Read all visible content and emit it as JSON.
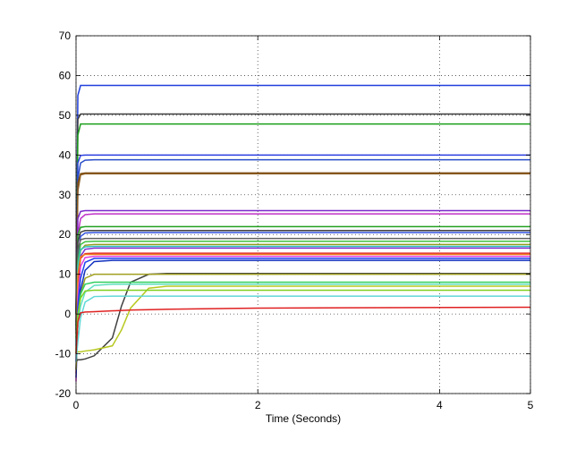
{
  "chart_data": {
    "type": "line",
    "xlabel": "Time (Seconds)",
    "x": [
      0,
      0.02,
      0.05,
      0.1,
      0.2,
      0.4,
      0.5,
      0.6,
      0.8,
      1,
      2,
      5
    ],
    "xlim": [
      0,
      5
    ],
    "xticks": [
      0,
      2,
      4,
      5
    ],
    "ylim": [
      -20,
      70
    ],
    "yticks": [
      -20,
      -10,
      0,
      10,
      20,
      30,
      40,
      50,
      60,
      70
    ],
    "grid": true,
    "series": [
      {
        "color": "#1f3fdc",
        "values": [
          0,
          55,
          57.5,
          57.5,
          57.5,
          57.5,
          57.5,
          57.5,
          57.5,
          57.5,
          57.5,
          57.5
        ]
      },
      {
        "color": "#3a3a3a",
        "values": [
          0,
          49,
          50.3,
          50.3,
          50.3,
          50.3,
          50.3,
          50.3,
          50.3,
          50.3,
          50.3,
          50.3
        ]
      },
      {
        "color": "#1aa01a",
        "values": [
          -5,
          45,
          47.8,
          47.8,
          47.8,
          47.8,
          47.8,
          47.8,
          47.8,
          47.8,
          47.8,
          47.8
        ]
      },
      {
        "color": "#2d3fe0",
        "values": [
          0,
          38,
          39.9,
          40,
          40,
          40,
          40,
          40,
          40,
          40,
          40,
          40
        ]
      },
      {
        "color": "#2a4ec8",
        "values": [
          -3,
          34,
          38,
          38.7,
          38.8,
          38.8,
          38.8,
          38.8,
          38.8,
          38.8,
          38.8,
          38.8
        ]
      },
      {
        "color": "#7a4a10",
        "values": [
          0,
          33,
          35.3,
          35.5,
          35.5,
          35.5,
          35.5,
          35.5,
          35.5,
          35.5,
          35.5,
          35.5
        ]
      },
      {
        "color": "#8a5a20",
        "values": [
          -2,
          31,
          35,
          35.3,
          35.3,
          35.3,
          35.3,
          35.3,
          35.3,
          35.3,
          35.3,
          35.3
        ]
      },
      {
        "color": "#7a28c8",
        "values": [
          0,
          24,
          25.8,
          26,
          26,
          26,
          26,
          26,
          26,
          26,
          26,
          26
        ]
      },
      {
        "color": "#c030c8",
        "values": [
          -5,
          20,
          24,
          25,
          25.2,
          25.2,
          25.2,
          25.2,
          25.2,
          25.2,
          25.2,
          25.2
        ]
      },
      {
        "color": "#20a020",
        "values": [
          0,
          20,
          21.8,
          22,
          22,
          22,
          22,
          22,
          22,
          22,
          22,
          22
        ]
      },
      {
        "color": "#404040",
        "values": [
          -4,
          18,
          20.6,
          21,
          21,
          21,
          21,
          21,
          21,
          21,
          21,
          21
        ]
      },
      {
        "color": "#3050e0",
        "values": [
          -8,
          14,
          19.5,
          20.4,
          20.5,
          20.5,
          20.5,
          20.5,
          20.5,
          20.5,
          20.5,
          20.5
        ]
      },
      {
        "color": "#606060",
        "values": [
          -3,
          16,
          18.7,
          19,
          19,
          19,
          19,
          19,
          19,
          19,
          19,
          19
        ]
      },
      {
        "color": "#40c040",
        "values": [
          -6,
          13,
          17.5,
          18.2,
          18.3,
          18.3,
          18.3,
          18.3,
          18.3,
          18.3,
          18.3,
          18.3
        ]
      },
      {
        "color": "#90a020",
        "values": [
          -10,
          10,
          16,
          17.3,
          17.5,
          17.5,
          17.5,
          17.5,
          17.5,
          17.5,
          17.5,
          17.5
        ]
      },
      {
        "color": "#30c0c0",
        "values": [
          -7,
          12,
          16.2,
          16.9,
          17,
          17,
          17,
          17,
          17,
          17,
          17,
          17
        ]
      },
      {
        "color": "#8030d0",
        "values": [
          -12,
          8,
          14.5,
          16.3,
          16.6,
          16.6,
          16.6,
          16.6,
          16.6,
          16.6,
          16.6,
          16.6
        ]
      },
      {
        "color": "#e02020",
        "values": [
          -15,
          8,
          14,
          15.2,
          15.3,
          15.3,
          15.3,
          15.3,
          15.3,
          15.3,
          15.3,
          15.3
        ]
      },
      {
        "color": "#f08020",
        "values": [
          -9,
          10,
          14.4,
          15,
          15,
          15,
          15,
          15,
          15,
          15,
          15,
          15
        ]
      },
      {
        "color": "#e040e0",
        "values": [
          -17,
          4,
          12,
          14.2,
          14.5,
          14.5,
          14.5,
          14.5,
          14.5,
          14.5,
          14.5,
          14.5
        ]
      },
      {
        "color": "#2040f0",
        "values": [
          -14,
          2,
          9,
          13,
          14,
          14,
          14,
          14,
          14,
          14,
          14,
          14
        ]
      },
      {
        "color": "#1030c0",
        "values": [
          -16,
          -2,
          6,
          11,
          13.2,
          13.5,
          13.5,
          13.5,
          13.5,
          13.5,
          13.5,
          13.5
        ]
      },
      {
        "color": "#404040",
        "values": [
          -12,
          -11.5,
          -11.5,
          -11.3,
          -10.5,
          -6,
          2,
          8,
          10,
          10.2,
          10.2,
          10.2
        ]
      },
      {
        "color": "#a0a020",
        "values": [
          -14,
          -2,
          5,
          9,
          10,
          10,
          10,
          10,
          10,
          10,
          10,
          10
        ]
      },
      {
        "color": "#30d060",
        "values": [
          -10,
          -1,
          5,
          7.5,
          8,
          8,
          8,
          8,
          8,
          8,
          8,
          8
        ]
      },
      {
        "color": "#60e0c0",
        "values": [
          -8,
          -3,
          2,
          5.5,
          7.2,
          7.5,
          7.5,
          7.5,
          7.5,
          7.5,
          7.5,
          7.5
        ]
      },
      {
        "color": "#b8c820",
        "values": [
          -9.5,
          -9.5,
          -9.5,
          -9.3,
          -9,
          -8,
          -4,
          1.5,
          6.5,
          7,
          7,
          7
        ]
      },
      {
        "color": "#80d020",
        "values": [
          -6,
          0,
          4,
          5.8,
          6,
          6,
          6,
          6,
          6,
          6,
          6,
          6
        ]
      },
      {
        "color": "#60d8d8",
        "values": [
          -12,
          -7,
          -1,
          3,
          4.4,
          4.5,
          4.5,
          4.5,
          4.5,
          4.5,
          4.5,
          4.5
        ]
      },
      {
        "color": "#e02020",
        "values": [
          -10,
          -2,
          0.3,
          0.5,
          0.6,
          0.8,
          0.9,
          1,
          1.1,
          1.2,
          1.5,
          1.7
        ]
      }
    ]
  }
}
